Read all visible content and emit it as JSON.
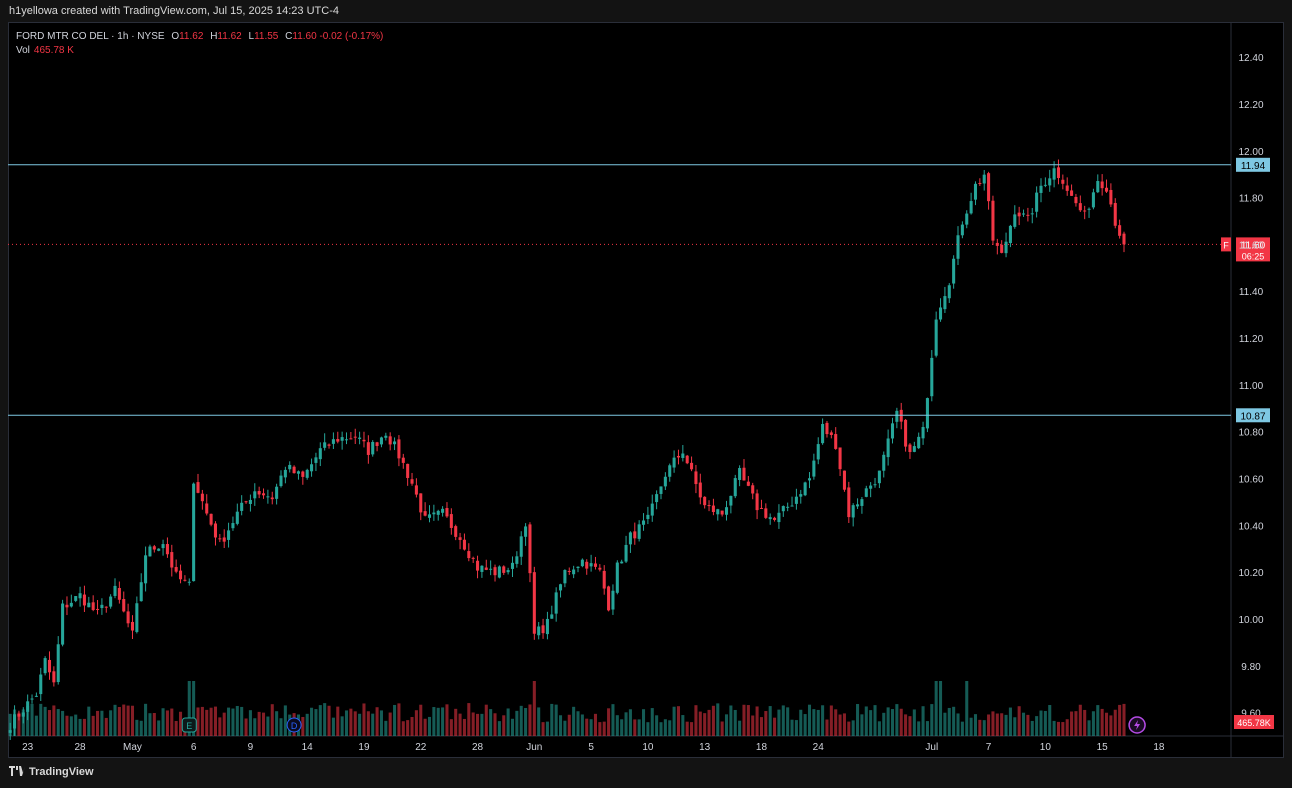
{
  "attribution": "h1yellowa created with TradingView.com, Jul 15, 2025 14:23 UTC-4",
  "legend": {
    "symbol": "FORD MTR CO DEL · 1h · NYSE",
    "open_label": "O",
    "open": "11.62",
    "high_label": "H",
    "high": "11.62",
    "low_label": "L",
    "low": "11.55",
    "close_label": "C",
    "close": "11.60",
    "change": "-0.02 (-0.17%)",
    "vol_label": "Vol",
    "vol": "465.78 K"
  },
  "footer": {
    "logo_icon": "tradingview-logo-icon",
    "brand": "TradingView"
  },
  "colors": {
    "up": "#26a69a",
    "down": "#f23645",
    "hline": "#7ec8e3",
    "axis_text": "#d1d4dc"
  },
  "chart_data": {
    "type": "candlestick",
    "timeframe": "1h",
    "ylim": [
      9.5,
      12.55
    ],
    "y_ticks": [
      "12.40",
      "12.20",
      "12.00",
      "11.80",
      "11.60",
      "11.40",
      "11.20",
      "11.00",
      "10.80",
      "10.60",
      "10.40",
      "10.20",
      "10.00",
      "9.80",
      "9.60"
    ],
    "x_ticks": [
      {
        "label": "23",
        "bar": 4
      },
      {
        "label": "28",
        "bar": 16
      },
      {
        "label": "May",
        "bar": 28
      },
      {
        "label": "6",
        "bar": 42
      },
      {
        "label": "9",
        "bar": 55
      },
      {
        "label": "14",
        "bar": 68
      },
      {
        "label": "19",
        "bar": 81
      },
      {
        "label": "22",
        "bar": 94
      },
      {
        "label": "28",
        "bar": 107
      },
      {
        "label": "Jun",
        "bar": 120
      },
      {
        "label": "5",
        "bar": 133
      },
      {
        "label": "10",
        "bar": 146
      },
      {
        "label": "13",
        "bar": 159
      },
      {
        "label": "18",
        "bar": 172
      },
      {
        "label": "24",
        "bar": 185
      },
      {
        "label": "Jul",
        "bar": 211
      },
      {
        "label": "7",
        "bar": 224
      },
      {
        "label": "10",
        "bar": 237
      },
      {
        "label": "15",
        "bar": 250
      },
      {
        "label": "18",
        "bar": 263
      }
    ],
    "total_bars": 280,
    "horizontal_lines": [
      {
        "value": 11.94,
        "label": "11.94"
      },
      {
        "value": 10.87,
        "label": "10.87"
      }
    ],
    "last_price": {
      "ticker": "F",
      "value": 11.6,
      "label": "11.60",
      "countdown": "06:25"
    },
    "volume_label": "465.78K",
    "event_markers": [
      {
        "text": "E",
        "bar": 41,
        "name": "earnings-marker"
      },
      {
        "text": "D",
        "bar": 65,
        "name": "dividend-marker"
      }
    ],
    "lightning_icon": "lightning-icon",
    "close_path": [
      [
        0,
        9.55
      ],
      [
        6,
        9.68
      ],
      [
        8,
        9.82
      ],
      [
        10,
        9.72
      ],
      [
        12,
        10.05
      ],
      [
        16,
        10.1
      ],
      [
        20,
        10.02
      ],
      [
        24,
        10.12
      ],
      [
        28,
        9.93
      ],
      [
        31,
        10.28
      ],
      [
        35,
        10.33
      ],
      [
        38,
        10.18
      ],
      [
        41,
        10.14
      ],
      [
        42,
        10.6
      ],
      [
        45,
        10.45
      ],
      [
        48,
        10.32
      ],
      [
        52,
        10.45
      ],
      [
        56,
        10.55
      ],
      [
        60,
        10.52
      ],
      [
        63,
        10.65
      ],
      [
        67,
        10.6
      ],
      [
        71,
        10.72
      ],
      [
        75,
        10.77
      ],
      [
        79,
        10.78
      ],
      [
        82,
        10.72
      ],
      [
        86,
        10.8
      ],
      [
        89,
        10.7
      ],
      [
        92,
        10.58
      ],
      [
        95,
        10.42
      ],
      [
        99,
        10.45
      ],
      [
        103,
        10.35
      ],
      [
        107,
        10.22
      ],
      [
        111,
        10.2
      ],
      [
        115,
        10.22
      ],
      [
        118,
        10.42
      ],
      [
        120,
        9.93
      ],
      [
        123,
        9.98
      ],
      [
        127,
        10.2
      ],
      [
        131,
        10.25
      ],
      [
        135,
        10.2
      ],
      [
        137,
        10.06
      ],
      [
        139,
        10.22
      ],
      [
        142,
        10.35
      ],
      [
        146,
        10.42
      ],
      [
        150,
        10.62
      ],
      [
        154,
        10.72
      ],
      [
        156,
        10.62
      ],
      [
        159,
        10.48
      ],
      [
        163,
        10.45
      ],
      [
        167,
        10.62
      ],
      [
        171,
        10.48
      ],
      [
        175,
        10.42
      ],
      [
        179,
        10.5
      ],
      [
        183,
        10.6
      ],
      [
        186,
        10.82
      ],
      [
        189,
        10.75
      ],
      [
        192,
        10.45
      ],
      [
        196,
        10.55
      ],
      [
        199,
        10.62
      ],
      [
        203,
        10.88
      ],
      [
        206,
        10.7
      ],
      [
        209,
        10.8
      ],
      [
        212,
        11.3
      ],
      [
        215,
        11.45
      ],
      [
        218,
        11.7
      ],
      [
        221,
        11.85
      ],
      [
        223,
        11.9
      ],
      [
        225,
        11.62
      ],
      [
        227,
        11.55
      ],
      [
        230,
        11.75
      ],
      [
        233,
        11.7
      ],
      [
        236,
        11.85
      ],
      [
        239,
        11.92
      ],
      [
        241,
        11.88
      ],
      [
        243,
        11.8
      ],
      [
        246,
        11.72
      ],
      [
        249,
        11.88
      ],
      [
        251,
        11.85
      ],
      [
        253,
        11.7
      ],
      [
        255,
        11.6
      ]
    ]
  }
}
